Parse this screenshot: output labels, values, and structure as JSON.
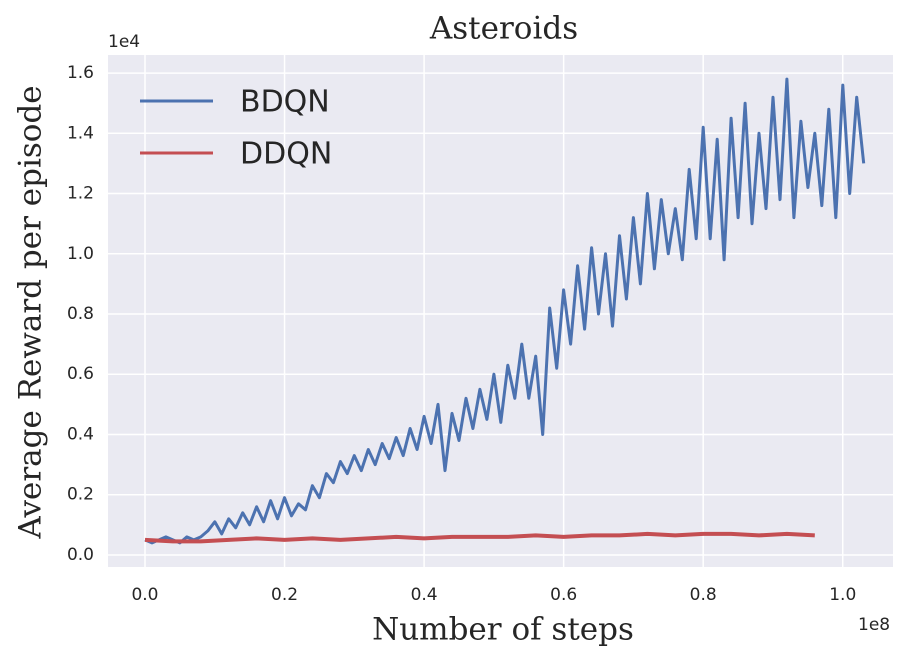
{
  "chart_data": {
    "type": "line",
    "title": "Asteroids",
    "x_label": "Number of steps",
    "y_label": "Average Reward per episode",
    "x_offset_label": "1e8",
    "y_offset_label": "1e4",
    "xlim": [
      -0.053,
      1.072
    ],
    "ylim": [
      -0.04,
      1.66
    ],
    "xticks": [
      {
        "value": 0,
        "label": "0.0"
      },
      0.2,
      0.4,
      0.6,
      0.8,
      {
        "value": 1,
        "label": "1.0"
      }
    ],
    "yticks": [
      {
        "value": 0,
        "label": "0.0"
      },
      0.2,
      0.4,
      0.6,
      0.8,
      {
        "value": 1,
        "label": "1.0"
      },
      1.2,
      1.4,
      1.6
    ],
    "grid": true,
    "legend": "upper left",
    "series": [
      {
        "name": "BDQN",
        "color": "#4c72b0",
        "x": [
          0,
          0.01,
          0.02,
          0.03,
          0.04,
          0.05,
          0.06,
          0.07,
          0.08,
          0.09,
          0.1,
          0.11,
          0.12,
          0.13,
          0.14,
          0.15,
          0.16,
          0.17,
          0.18,
          0.19,
          0.2,
          0.21,
          0.22,
          0.23,
          0.24,
          0.25,
          0.26,
          0.27,
          0.28,
          0.29,
          0.3,
          0.31,
          0.32,
          0.33,
          0.34,
          0.35,
          0.36,
          0.37,
          0.38,
          0.39,
          0.4,
          0.41,
          0.42,
          0.43,
          0.44,
          0.45,
          0.46,
          0.47,
          0.48,
          0.49,
          0.5,
          0.51,
          0.52,
          0.53,
          0.54,
          0.55,
          0.56,
          0.57,
          0.58,
          0.59,
          0.6,
          0.61,
          0.62,
          0.63,
          0.64,
          0.65,
          0.66,
          0.67,
          0.68,
          0.69,
          0.7,
          0.71,
          0.72,
          0.73,
          0.74,
          0.75,
          0.76,
          0.77,
          0.78,
          0.79,
          0.8,
          0.81,
          0.82,
          0.83,
          0.84,
          0.85,
          0.86,
          0.87,
          0.88,
          0.89,
          0.9,
          0.91,
          0.92,
          0.93,
          0.94,
          0.95,
          0.96,
          0.97,
          0.98,
          0.99,
          1,
          1.01,
          1.02,
          1.03
        ],
        "values": [
          0.05,
          0.04,
          0.05,
          0.06,
          0.05,
          0.04,
          0.06,
          0.05,
          0.06,
          0.08,
          0.11,
          0.07,
          0.12,
          0.09,
          0.14,
          0.1,
          0.16,
          0.11,
          0.18,
          0.12,
          0.19,
          0.13,
          0.17,
          0.15,
          0.23,
          0.19,
          0.27,
          0.24,
          0.31,
          0.27,
          0.33,
          0.28,
          0.35,
          0.3,
          0.37,
          0.32,
          0.39,
          0.33,
          0.42,
          0.35,
          0.46,
          0.37,
          0.5,
          0.28,
          0.47,
          0.38,
          0.52,
          0.42,
          0.55,
          0.45,
          0.6,
          0.44,
          0.63,
          0.52,
          0.7,
          0.52,
          0.66,
          0.4,
          0.82,
          0.62,
          0.88,
          0.7,
          0.96,
          0.75,
          1.02,
          0.8,
          1,
          0.76,
          1.06,
          0.85,
          1.12,
          0.9,
          1.2,
          0.95,
          1.18,
          1,
          1.15,
          0.98,
          1.28,
          1.05,
          1.42,
          1.05,
          1.38,
          0.98,
          1.45,
          1.12,
          1.5,
          1.1,
          1.4,
          1.15,
          1.52,
          1.18,
          1.58,
          1.12,
          1.44,
          1.22,
          1.4,
          1.16,
          1.48,
          1.12,
          1.56,
          1.2,
          1.52,
          1.3
        ]
      },
      {
        "name": "DDQN",
        "color": "#c44e52",
        "x": [
          0,
          0.04,
          0.08,
          0.12,
          0.16,
          0.2,
          0.24,
          0.28,
          0.32,
          0.36,
          0.4,
          0.44,
          0.48,
          0.52,
          0.56,
          0.6,
          0.64,
          0.68,
          0.72,
          0.76,
          0.8,
          0.84,
          0.88,
          0.92,
          0.96
        ],
        "values": [
          0.05,
          0.045,
          0.045,
          0.05,
          0.055,
          0.05,
          0.055,
          0.05,
          0.055,
          0.06,
          0.055,
          0.06,
          0.06,
          0.06,
          0.065,
          0.06,
          0.065,
          0.065,
          0.07,
          0.065,
          0.07,
          0.07,
          0.065,
          0.07,
          0.065
        ]
      }
    ]
  }
}
